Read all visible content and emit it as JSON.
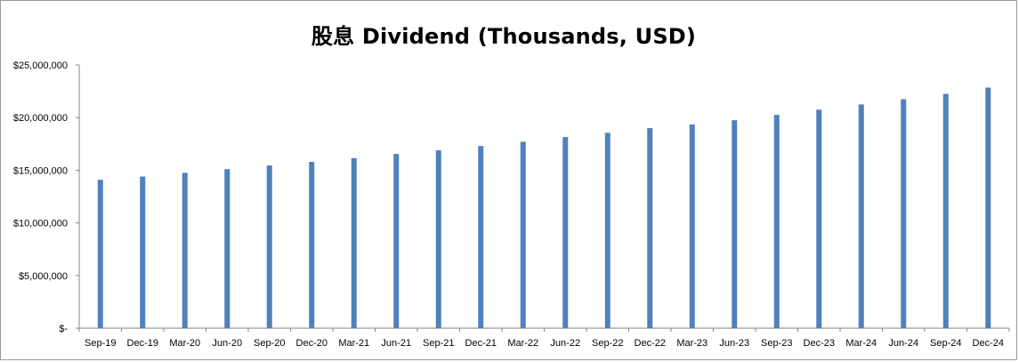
{
  "chart_data": {
    "type": "bar",
    "title": "股息 Dividend (Thousands, USD)",
    "xlabel": "",
    "ylabel": "",
    "categories": [
      "Sep-19",
      "Dec-19",
      "Mar-20",
      "Jun-20",
      "Sep-20",
      "Dec-20",
      "Mar-21",
      "Jun-21",
      "Sep-21",
      "Dec-21",
      "Mar-22",
      "Jun-22",
      "Sep-22",
      "Dec-22",
      "Mar-23",
      "Jun-23",
      "Sep-23",
      "Dec-23",
      "Mar-24",
      "Jun-24",
      "Sep-24",
      "Dec-24"
    ],
    "values": [
      14100000,
      14400000,
      14750000,
      15100000,
      15450000,
      15800000,
      16150000,
      16550000,
      16900000,
      17300000,
      17700000,
      18150000,
      18550000,
      19000000,
      19350000,
      19750000,
      20250000,
      20750000,
      21250000,
      21750000,
      22250000,
      22850000
    ],
    "ylim": [
      0,
      25000000
    ],
    "yticks": [
      0,
      5000000,
      10000000,
      15000000,
      20000000,
      25000000
    ],
    "ytick_labels": [
      "$-",
      "$5,000,000",
      "$10,000,000",
      "$15,000,000",
      "$20,000,000",
      "$25,000,000"
    ],
    "bar_color": "#4F81BD",
    "grid": false,
    "legend": "none"
  }
}
